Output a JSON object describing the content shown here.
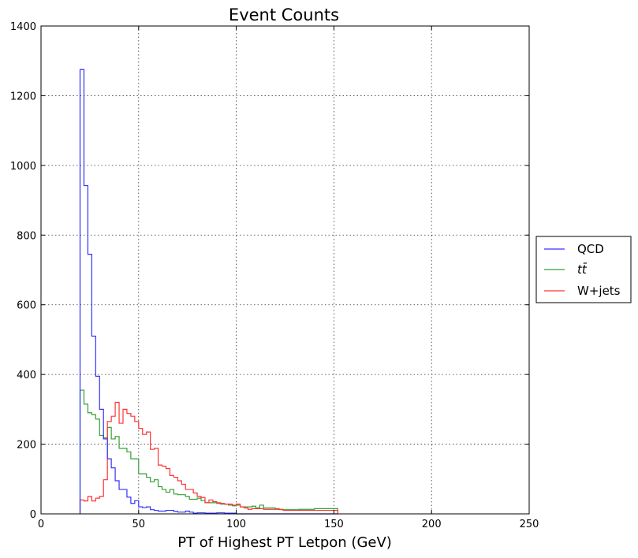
{
  "chart_data": {
    "type": "line",
    "style": "step histogram",
    "title": "Event Counts",
    "xlabel": "PT of Highest PT Letpon (GeV)",
    "ylabel": "",
    "xlim": [
      0,
      250
    ],
    "ylim": [
      0,
      1400
    ],
    "xticks": [
      "0",
      "50",
      "100",
      "150",
      "200",
      "250"
    ],
    "yticks": [
      "0",
      "200",
      "400",
      "600",
      "800",
      "1000",
      "1200",
      "1400"
    ],
    "grid": true,
    "legend_position": "right-outside",
    "bin_edges": [
      20,
      22,
      24,
      26,
      28,
      30,
      32,
      34,
      36,
      38,
      40,
      42,
      44,
      46,
      48,
      50,
      52,
      54,
      56,
      58,
      60,
      62,
      64,
      66,
      68,
      70,
      72,
      74,
      76,
      78,
      80,
      82,
      84,
      86,
      88,
      90,
      92,
      94,
      96,
      98,
      100,
      102,
      104,
      106,
      108,
      110,
      112,
      114,
      116,
      118,
      120,
      122,
      124,
      126,
      128,
      130,
      132,
      134,
      136,
      138,
      140,
      142,
      144,
      146,
      148,
      150,
      152
    ],
    "series": [
      {
        "name": "QCD",
        "legend_label": "QCD",
        "color": "#3333ff",
        "values": [
          1275,
          942,
          745,
          510,
          395,
          300,
          215,
          158,
          132,
          95,
          70,
          70,
          48,
          30,
          38,
          20,
          18,
          20,
          12,
          10,
          8,
          8,
          10,
          10,
          7,
          5,
          5,
          8,
          5,
          2,
          3,
          3,
          2,
          2,
          2,
          3,
          3,
          2,
          2,
          2,
          0,
          0,
          0,
          0,
          0,
          0,
          0,
          0,
          0,
          0,
          0,
          0,
          0,
          0,
          0,
          0,
          0,
          0,
          0,
          0,
          0,
          0,
          0,
          0,
          0,
          0
        ]
      },
      {
        "name": "ttbar",
        "legend_label": "tt̄",
        "color": "#33a033",
        "values": [
          355,
          315,
          290,
          285,
          272,
          225,
          218,
          248,
          215,
          222,
          188,
          188,
          178,
          158,
          158,
          115,
          115,
          105,
          92,
          98,
          78,
          70,
          62,
          70,
          57,
          55,
          55,
          50,
          42,
          42,
          45,
          38,
          32,
          32,
          32,
          30,
          28,
          28,
          25,
          23,
          25,
          20,
          20,
          20,
          22,
          17,
          25,
          17,
          17,
          17,
          15,
          12,
          12,
          12,
          12,
          12,
          13,
          13,
          13,
          13,
          15,
          15,
          15,
          15,
          15,
          15
        ]
      },
      {
        "name": "W+jets",
        "legend_label": "W+jets",
        "color": "#ff3333",
        "values": [
          40,
          37,
          50,
          37,
          45,
          50,
          98,
          265,
          280,
          320,
          260,
          300,
          288,
          280,
          265,
          245,
          228,
          235,
          185,
          188,
          140,
          137,
          130,
          110,
          105,
          95,
          85,
          70,
          70,
          60,
          50,
          47,
          32,
          40,
          35,
          32,
          30,
          28,
          28,
          25,
          28,
          20,
          17,
          13,
          15,
          15,
          15,
          13,
          13,
          13,
          13,
          13,
          10,
          10,
          10,
          10,
          10,
          10,
          10,
          10,
          10,
          10,
          10,
          10,
          10,
          10
        ]
      }
    ]
  }
}
